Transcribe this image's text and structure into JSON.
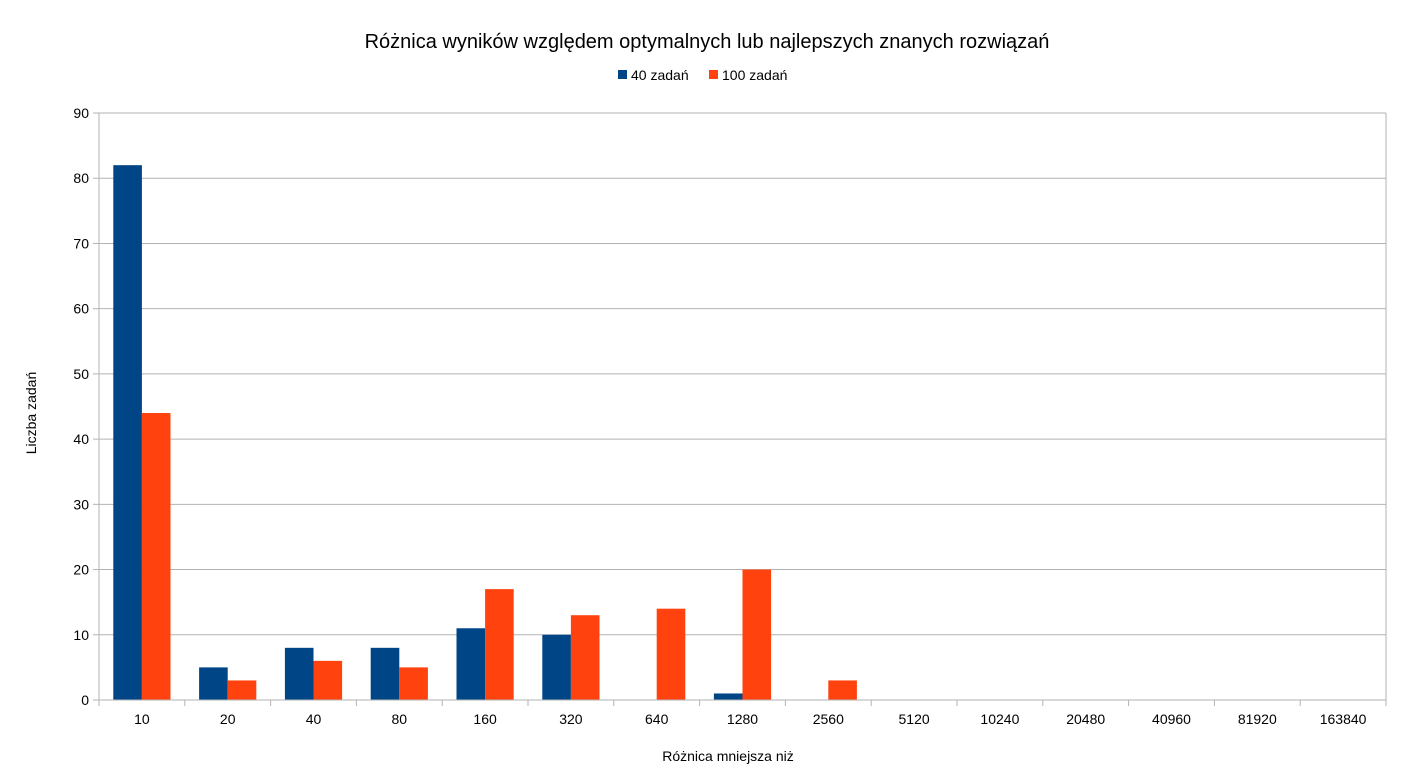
{
  "chart_data": {
    "type": "bar",
    "title": "Różnica wyników względem optymalnych lub najlepszych znanych rozwiązań",
    "xlabel": "Różnica mniejsza niż",
    "ylabel": "Liczba zadań",
    "categories": [
      "10",
      "20",
      "40",
      "80",
      "160",
      "320",
      "640",
      "1280",
      "2560",
      "5120",
      "10240",
      "20480",
      "40960",
      "81920",
      "163840"
    ],
    "series": [
      {
        "name": "40 zadań",
        "color": "#004586",
        "values": [
          82,
          5,
          8,
          8,
          11,
          10,
          0,
          1,
          0,
          0,
          0,
          0,
          0,
          0,
          0
        ]
      },
      {
        "name": "100 zadań",
        "color": "#ff420e",
        "values": [
          44,
          3,
          6,
          5,
          17,
          13,
          14,
          20,
          3,
          0,
          0,
          0,
          0,
          0,
          0
        ]
      }
    ],
    "ylim": [
      0,
      90
    ],
    "yticks": [
      "0",
      "10",
      "20",
      "30",
      "40",
      "50",
      "60",
      "70",
      "80",
      "90"
    ],
    "grid": true,
    "legend": "top"
  }
}
